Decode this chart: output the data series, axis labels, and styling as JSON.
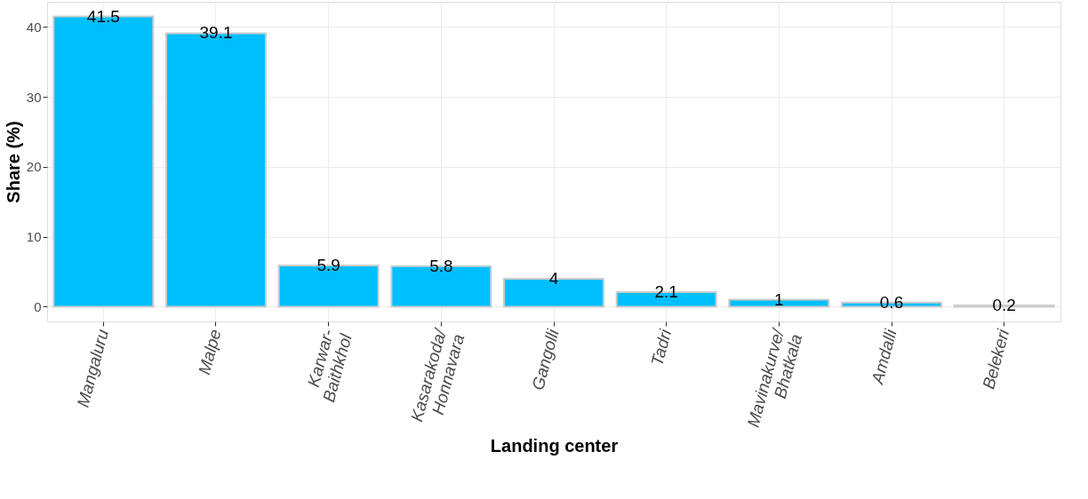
{
  "chart_data": {
    "type": "bar",
    "xlabel": "Landing center",
    "ylabel": "Share (%)",
    "categories": [
      "Mangaluru",
      "Malpe",
      "Karwar-\nBaithkhol",
      "Kasarakoda/\nHonnavara",
      "Gangolli",
      "Tadri",
      "Mavinakurve/\nBhatkala",
      "Amdalli",
      "Belekeri"
    ],
    "values": [
      41.5,
      39.1,
      5.9,
      5.8,
      4,
      2.1,
      1,
      0.6,
      0.2
    ],
    "color": "#00bfff",
    "ylim": [
      -2.1,
      43.6
    ],
    "yticks": [
      0,
      10,
      20,
      30,
      40
    ],
    "grid": true,
    "data_labels": true
  }
}
